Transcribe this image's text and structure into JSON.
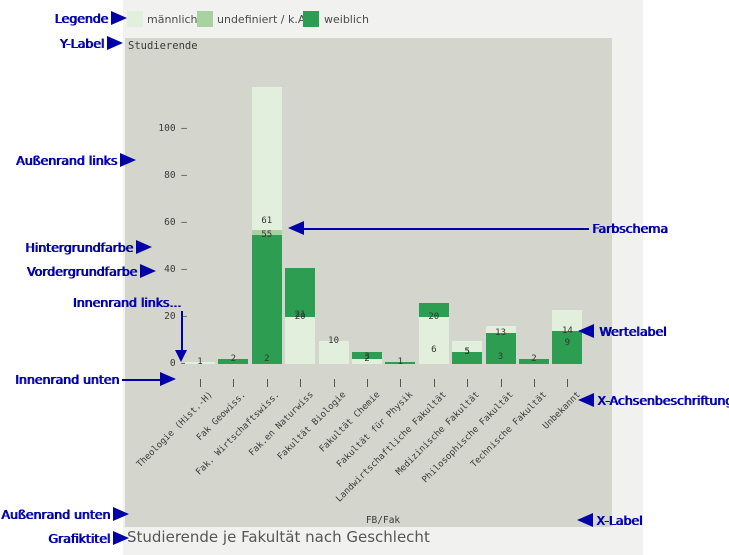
{
  "figure": {
    "title": "Studierende je Fakultät nach Geschlecht",
    "y_axis_label": "Studierende",
    "x_axis_label": "FB/Fak"
  },
  "legend": {
    "items": [
      {
        "label": "männlich",
        "color": "#e3efdd"
      },
      {
        "label": "undefiniert / k.A.",
        "color": "#a8d2a0"
      },
      {
        "label": "weiblich",
        "color": "#2d9e51"
      }
    ]
  },
  "annotations": {
    "color": "#0000a8",
    "items": [
      {
        "id": "legende",
        "label": "Legende"
      },
      {
        "id": "y-label",
        "label": "Y-Label"
      },
      {
        "id": "aussenrand-links",
        "label": "Außenrand links"
      },
      {
        "id": "hintergrundfarbe",
        "label": "Hintergrundfarbe"
      },
      {
        "id": "vordergrundfarbe",
        "label": "Vordergrundfarbe"
      },
      {
        "id": "innenrand-links",
        "label": "Innenrand links..."
      },
      {
        "id": "innenrand-unten",
        "label": "Innenrand unten"
      },
      {
        "id": "aussenrand-unten",
        "label": "Außenrand unten"
      },
      {
        "id": "grafiktitel",
        "label": "Grafiktitel"
      },
      {
        "id": "farbschema",
        "label": "Farbschema"
      },
      {
        "id": "wertelabel",
        "label": "Wertelabel"
      },
      {
        "id": "x-achsenbeschriftung",
        "label": "X-Achsenbeschriftung"
      },
      {
        "id": "x-label",
        "label": "X-Label"
      }
    ]
  },
  "chart_data": {
    "type": "bar",
    "stacked": true,
    "title": "Studierende je Fakultät nach Geschlecht",
    "xlabel": "FB/Fak",
    "ylabel": "Studierende",
    "ylim": [
      0,
      120
    ],
    "yticks": [
      0,
      20,
      40,
      60,
      80,
      100
    ],
    "grid": false,
    "legend_position": "top",
    "value_labels": true,
    "categories": [
      "Theologie (Hist.-H)",
      "Fak Geowiss.",
      "Fak. Wirtschaftswiss.",
      "Fak.en Naturwiss",
      "Fakultät Biologie",
      "Fakultät Chemie",
      "Fakultät für Physik",
      "Landwirtschaftliche Fakultät",
      "Medizinische Fakultät",
      "Philosophische Fakultät",
      "Technische Fakultät",
      "Unbekannt"
    ],
    "series": [
      {
        "name": "männlich",
        "color": "#e3efdd",
        "values": [
          1,
          0,
          61,
          20,
          10,
          2,
          0,
          20,
          5,
          3,
          0,
          9
        ]
      },
      {
        "name": "undefiniert / k.A.",
        "color": "#a8d2a0",
        "values": [
          0,
          0,
          2,
          0,
          0,
          0,
          0,
          0,
          0,
          0,
          0,
          0
        ]
      },
      {
        "name": "weiblich",
        "color": "#2d9e51",
        "values": [
          0,
          2,
          55,
          21,
          0,
          3,
          1,
          6,
          5,
          13,
          2,
          14
        ]
      }
    ],
    "bars_bottom_to_top": [
      [
        {
          "s": 0,
          "v": 1
        }
      ],
      [
        {
          "s": 2,
          "v": 2
        }
      ],
      [
        {
          "s": 2,
          "v": 55
        },
        {
          "s": 1,
          "v": 2
        },
        {
          "s": 0,
          "v": 61
        }
      ],
      [
        {
          "s": 0,
          "v": 20
        },
        {
          "s": 2,
          "v": 21
        }
      ],
      [
        {
          "s": 0,
          "v": 10
        }
      ],
      [
        {
          "s": 0,
          "v": 2
        },
        {
          "s": 2,
          "v": 3
        }
      ],
      [
        {
          "s": 2,
          "v": 1
        }
      ],
      [
        {
          "s": 0,
          "v": 20
        },
        {
          "s": 2,
          "v": 6
        }
      ],
      [
        {
          "s": 2,
          "v": 5
        },
        {
          "s": 0,
          "v": 5
        }
      ],
      [
        {
          "s": 2,
          "v": 13
        },
        {
          "s": 0,
          "v": 3
        }
      ],
      [
        {
          "s": 2,
          "v": 2
        }
      ],
      [
        {
          "s": 2,
          "v": 14
        },
        {
          "s": 0,
          "v": 9
        }
      ]
    ]
  },
  "colors": {
    "annotation": "#0000a8",
    "figure_background": "#f1f1ef",
    "plot_background": "#d4d6ce",
    "chart_text": "#3a3a3a",
    "title_text": "#565656"
  }
}
